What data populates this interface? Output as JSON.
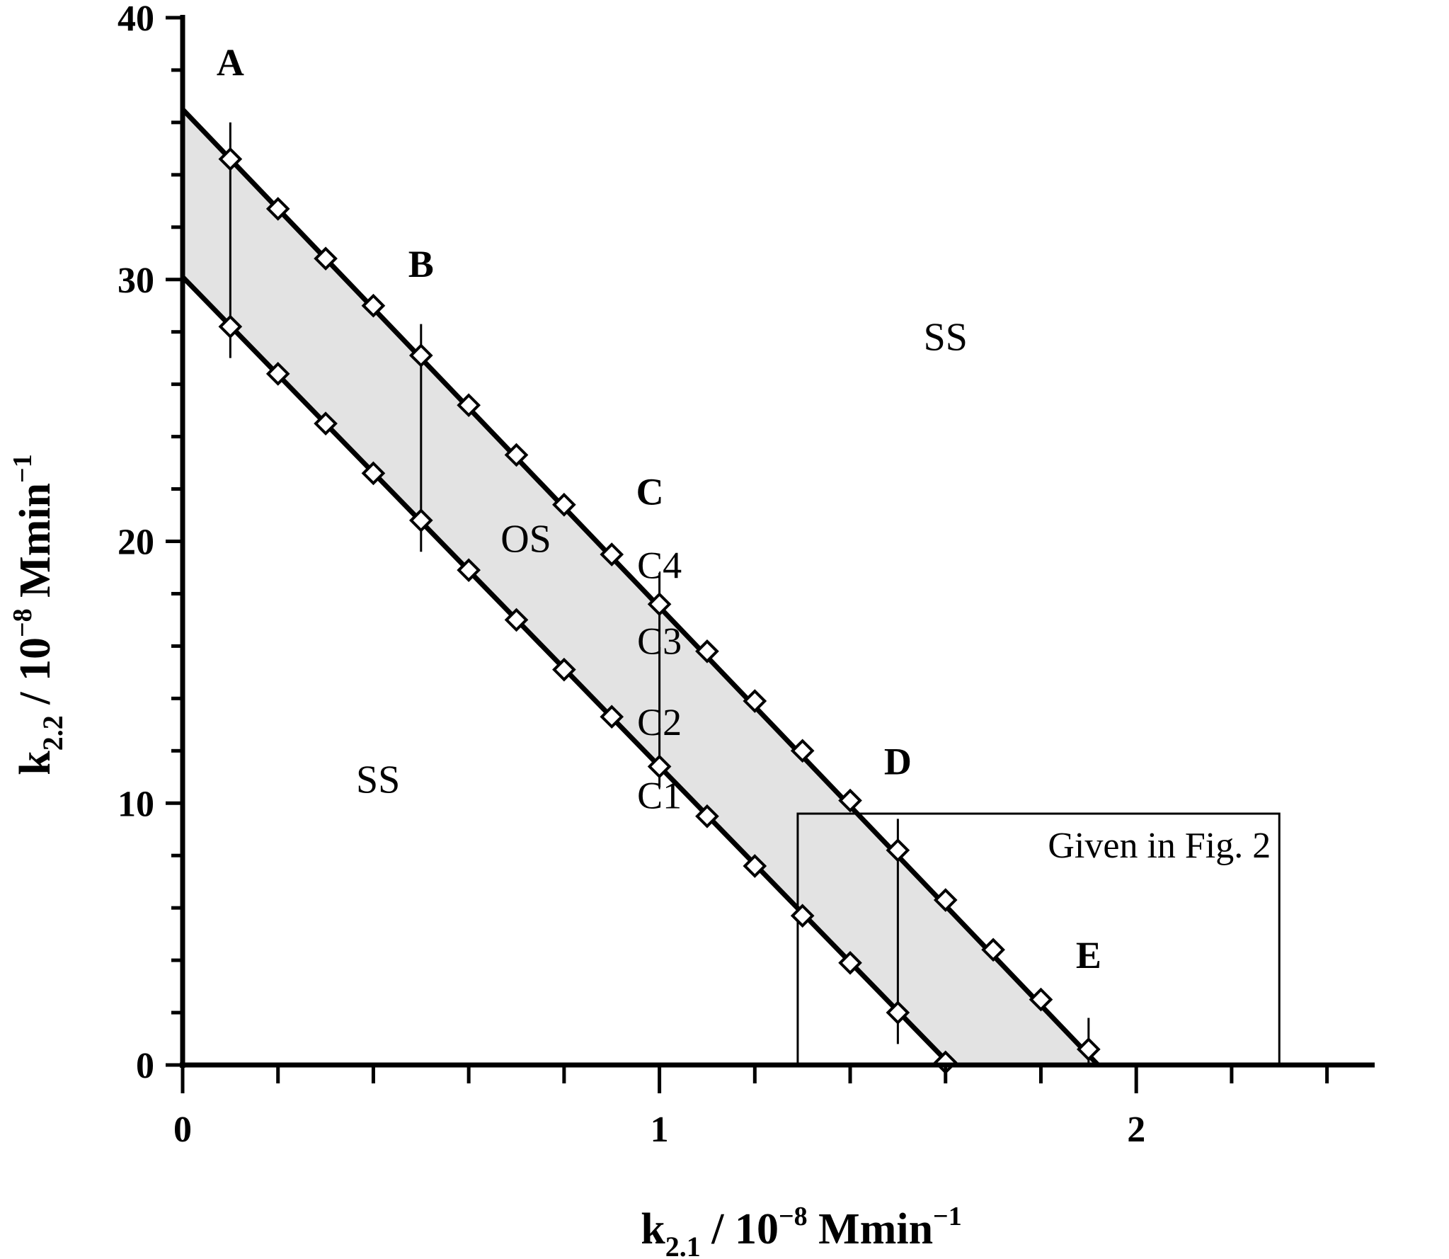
{
  "chart_data": {
    "type": "line",
    "xlabel": {
      "main": "k",
      "sub": "2.1",
      "unit": " / 10",
      "exp": "−8",
      "unit2": " Mmin",
      "exp2": "−1"
    },
    "ylabel": {
      "main": "k",
      "sub": "2.2",
      "unit": " / 10",
      "exp": "−8",
      "unit2": " Mmin",
      "exp2": "−1"
    },
    "xlim": [
      0,
      2.5
    ],
    "ylim": [
      0,
      40
    ],
    "x_ticks": [
      0,
      1,
      2
    ],
    "x_tick_labels": [
      "0",
      "1",
      "2"
    ],
    "y_ticks": [
      0,
      10,
      20,
      30,
      40
    ],
    "y_tick_labels": [
      "0",
      "10",
      "20",
      "30",
      "40"
    ],
    "x_minor_step": 0.2,
    "y_minor_step": 2,
    "series": [
      {
        "marker": "diamond-open",
        "x": [
          0.1,
          0.2,
          0.3,
          0.4,
          0.5,
          0.6,
          0.7,
          0.8,
          0.9,
          1.0,
          1.1,
          1.2,
          1.3,
          1.4,
          1.5,
          1.6,
          1.7,
          1.8,
          1.9
        ],
        "y": [
          34.6,
          32.7,
          30.8,
          29.0,
          27.1,
          25.2,
          23.3,
          21.4,
          19.5,
          17.6,
          15.8,
          13.9,
          12.0,
          10.1,
          8.2,
          6.3,
          4.4,
          2.5,
          0.6
        ]
      },
      {
        "marker": "diamond-open",
        "x": [
          0.1,
          0.2,
          0.3,
          0.4,
          0.5,
          0.6,
          0.7,
          0.8,
          0.9,
          1.0,
          1.1,
          1.2,
          1.3,
          1.4,
          1.5,
          1.6
        ],
        "y": [
          28.2,
          26.4,
          24.5,
          22.6,
          20.8,
          18.9,
          17.0,
          15.1,
          13.3,
          11.4,
          9.5,
          7.6,
          5.7,
          3.9,
          2.0,
          0.1
        ]
      }
    ],
    "upper_line": {
      "x0": 0,
      "y0": 36.5,
      "x1": 1.92,
      "y1": 0
    },
    "lower_line": {
      "x0": 0,
      "y0": 30.1,
      "x1": 1.61,
      "y1": 0
    },
    "vertical_segments": [
      {
        "x": 0.1,
        "y0": 27.0,
        "y1": 36.0
      },
      {
        "x": 0.5,
        "y0": 19.6,
        "y1": 28.3
      },
      {
        "x": 1.0,
        "y0": 10.6,
        "y1": 18.8
      },
      {
        "x": 1.5,
        "y0": 0.8,
        "y1": 9.4
      },
      {
        "x": 1.9,
        "y0": 0.0,
        "y1": 1.8
      }
    ],
    "rect": {
      "x0": 1.29,
      "x1": 2.3,
      "y0": 0,
      "y1": 9.6,
      "label": "Given in Fig. 2"
    },
    "region_labels": [
      {
        "text": "SS",
        "x": 1.6,
        "y": 27.3
      },
      {
        "text": "SS",
        "x": 0.41,
        "y": 10.4
      },
      {
        "text": "OS",
        "x": 0.72,
        "y": 19.6
      }
    ],
    "point_labels": [
      {
        "text": "A",
        "x": 0.1,
        "y": 37.8,
        "bold": true
      },
      {
        "text": "B",
        "x": 0.5,
        "y": 30.1,
        "bold": true
      },
      {
        "text": "C",
        "x": 0.98,
        "y": 21.4,
        "bold": true
      },
      {
        "text": "D",
        "x": 1.5,
        "y": 11.1,
        "bold": true
      },
      {
        "text": "E",
        "x": 1.9,
        "y": 3.7,
        "bold": true
      },
      {
        "text": "C4",
        "x": 1.0,
        "y": 18.6,
        "bold": false
      },
      {
        "text": "C3",
        "x": 1.0,
        "y": 15.7,
        "bold": false
      },
      {
        "text": "C2",
        "x": 1.0,
        "y": 12.6,
        "bold": false
      },
      {
        "text": "C1",
        "x": 1.0,
        "y": 9.8,
        "bold": false
      }
    ],
    "colors": {
      "band_fill": "#e3e3e3",
      "line": "#000000",
      "marker_fill": "#ffffff"
    }
  }
}
